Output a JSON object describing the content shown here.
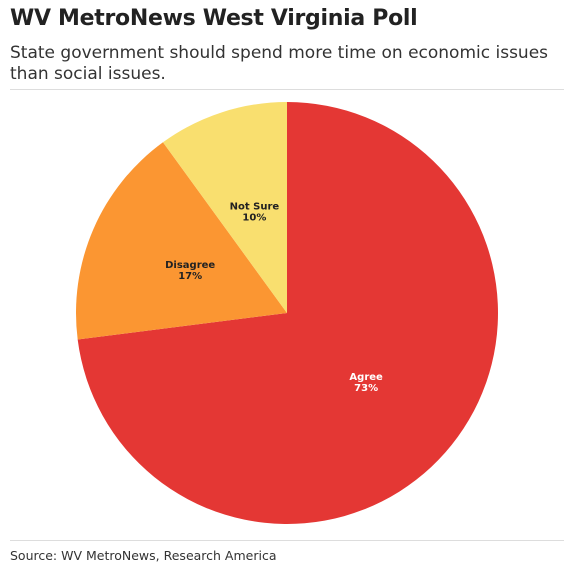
{
  "header": {
    "title": "WV MetroNews West Virginia Poll",
    "subtitle": "State government should spend more time on economic issues than social issues."
  },
  "footer": {
    "source": "Source: WV MetroNews, Research America"
  },
  "chart_data": {
    "type": "pie",
    "categories": [
      "Agree",
      "Disagree",
      "Not Sure"
    ],
    "values": [
      73,
      17,
      10
    ],
    "value_labels": [
      "73%",
      "17%",
      "10%"
    ],
    "colors": [
      "#e43734",
      "#fb9632",
      "#f9df6f"
    ],
    "label_colors": [
      "#ffffff",
      "#222222",
      "#222222"
    ],
    "start": "12 o'clock",
    "direction": "clockwise",
    "legend": "none"
  }
}
